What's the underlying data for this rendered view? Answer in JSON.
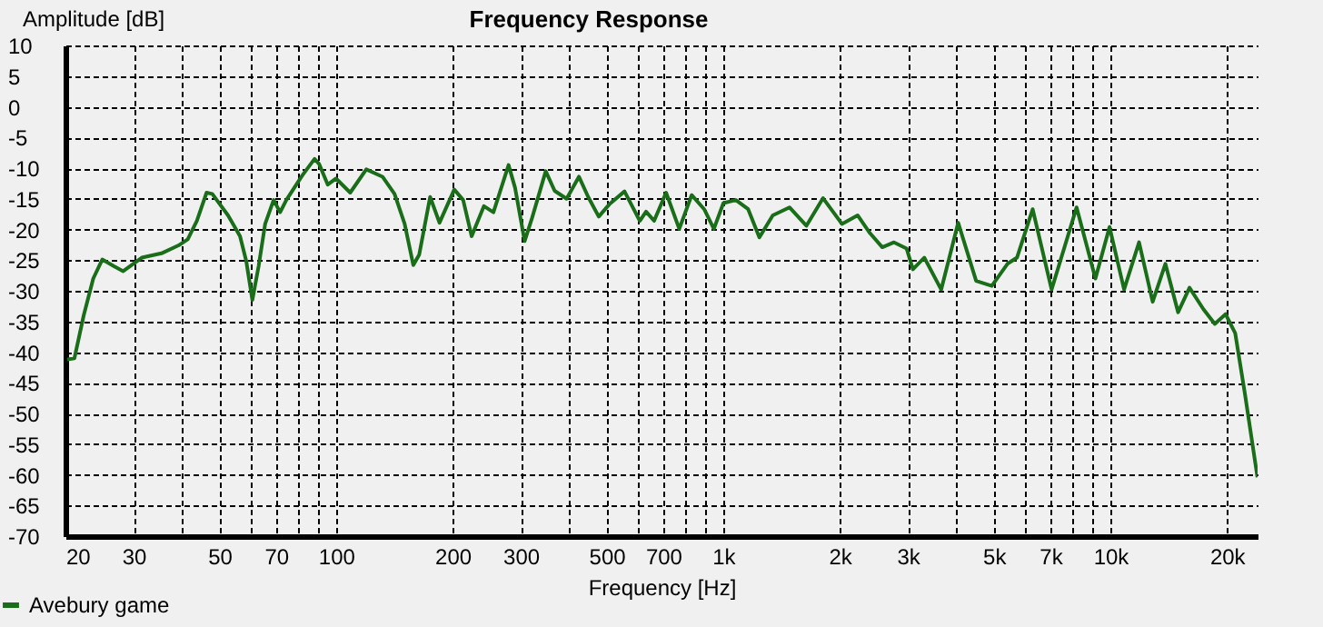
{
  "chart_data": {
    "type": "line",
    "title": "Frequency Response",
    "xlabel": "Frequency [Hz]",
    "ylabel": "Amplitude [dB]",
    "log": "x",
    "grid": true,
    "legend": "bottom left",
    "line_style": "solid",
    "xlim": [
      20,
      24000
    ],
    "ylim": [
      -70,
      10
    ],
    "xticks": [
      20,
      30,
      {
        "value": 40,
        "label": null
      },
      50,
      {
        "value": 60,
        "label": null
      },
      70,
      {
        "value": 80,
        "label": null
      },
      {
        "value": 90,
        "label": null
      },
      100,
      200,
      300,
      {
        "value": 400,
        "label": null
      },
      500,
      {
        "value": 600,
        "label": null
      },
      700,
      {
        "value": 800,
        "label": null
      },
      {
        "value": 900,
        "label": null
      },
      {
        "value": 1000,
        "label": "1k"
      },
      {
        "value": 2000,
        "label": "2k"
      },
      {
        "value": 3000,
        "label": "3k"
      },
      {
        "value": 4000,
        "label": null
      },
      {
        "value": 5000,
        "label": "5k"
      },
      {
        "value": 6000,
        "label": null
      },
      {
        "value": 7000,
        "label": "7k"
      },
      {
        "value": 8000,
        "label": null
      },
      {
        "value": 9000,
        "label": null
      },
      {
        "value": 10000,
        "label": "10k"
      },
      {
        "value": 20000,
        "label": "20k"
      }
    ],
    "yticks": [
      -70,
      -65,
      -60,
      -55,
      -50,
      -45,
      -40,
      -35,
      -30,
      -25,
      -20,
      -15,
      -10,
      -5,
      0,
      5,
      10
    ],
    "x": [
      20.2,
      21.1,
      22.3,
      23.6,
      24.9,
      26.7,
      28.2,
      31.5,
      35.4,
      39.2,
      41.4,
      43.7,
      46.3,
      47.9,
      52.6,
      56.5,
      58.6,
      60.8,
      63.1,
      65.6,
      69,
      71.7,
      74.4,
      81.8,
      88,
      90.4,
      95.2,
      100,
      108.8,
      119.7,
      131.8,
      141.6,
      150.4,
      158.3,
      164,
      175,
      185,
      202,
      213,
      224,
      241,
      255,
      279,
      290,
      307,
      321,
      348,
      367,
      394,
      424,
      448,
      477,
      508,
      556,
      609,
      632,
      663,
      712,
      770,
      829,
      893,
      946,
      1001,
      1078,
      1160,
      1240,
      1343,
      1483,
      1640,
      1811,
      2026,
      2224,
      2393,
      2576,
      2762,
      2976,
      3090,
      3306,
      3656,
      4045,
      4501,
      4940,
      5423,
      5738,
      6300,
      7050,
      8180,
      9150,
      9950,
      10850,
      11860,
      12860,
      13870,
      14960,
      16010,
      17390,
      18610,
      19840,
      21010,
      22260,
      23980
    ],
    "series": [
      {
        "name": "Avebury game",
        "color": "#1a6e1a",
        "values": [
          -41.2,
          -41,
          -34,
          -28,
          -24.9,
          -26,
          -26.8,
          -24.6,
          -23.9,
          -22.6,
          -21.6,
          -18.6,
          -14,
          -14.2,
          -17.7,
          -21.1,
          -25.1,
          -31.5,
          -26,
          -19.1,
          -15.2,
          -17.2,
          -15.2,
          -11.2,
          -8.5,
          -9.3,
          -12.7,
          -11.7,
          -14,
          -10.2,
          -11.4,
          -14.2,
          -19.1,
          -25.8,
          -24.1,
          -14.7,
          -18.9,
          -13.5,
          -15.2,
          -21.1,
          -16.2,
          -17.2,
          -9.5,
          -13.2,
          -21.9,
          -18.1,
          -10.5,
          -13.7,
          -15,
          -11.4,
          -14.7,
          -17.9,
          -15.9,
          -13.8,
          -18.6,
          -17.1,
          -18.6,
          -14,
          -19.9,
          -14.4,
          -16.7,
          -19.9,
          -15.7,
          -15.2,
          -16.7,
          -21.3,
          -17.7,
          -16.4,
          -19.4,
          -14.9,
          -19.1,
          -17.7,
          -20.6,
          -22.9,
          -22.1,
          -23.1,
          -26.5,
          -24.6,
          -29.8,
          -18.9,
          -28.4,
          -29.2,
          -25.6,
          -24.6,
          -16.7,
          -29.8,
          -16.4,
          -28,
          -19.6,
          -29.8,
          -22.1,
          -31.8,
          -25.6,
          -33.5,
          -29.5,
          -33,
          -35.4,
          -33.8,
          -36.9,
          -46.8,
          -60.4
        ]
      }
    ]
  }
}
